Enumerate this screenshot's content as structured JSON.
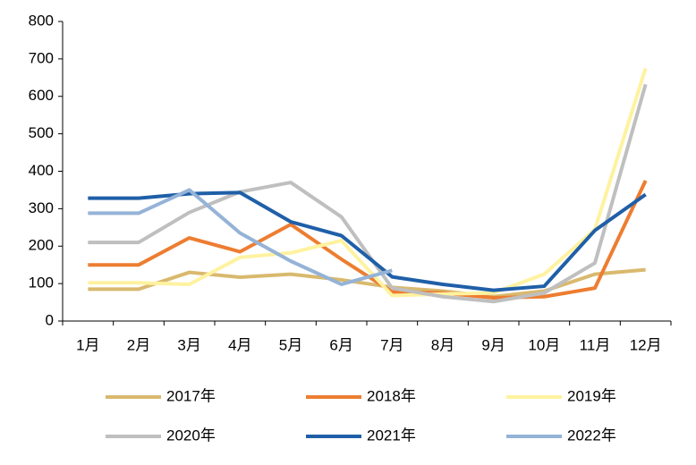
{
  "chart_data": {
    "type": "line",
    "categories": [
      "1月",
      "2月",
      "3月",
      "4月",
      "5月",
      "6月",
      "7月",
      "8月",
      "9月",
      "10月",
      "11月",
      "12月"
    ],
    "series": [
      {
        "name": "2017年",
        "color": "#d9b96e",
        "values": [
          85,
          85,
          130,
          117,
          125,
          110,
          90,
          80,
          65,
          80,
          125,
          137
        ]
      },
      {
        "name": "2018年",
        "color": "#ed7d31",
        "values": [
          150,
          150,
          222,
          185,
          258,
          165,
          78,
          75,
          62,
          65,
          88,
          375
        ]
      },
      {
        "name": "2019年",
        "color": "#fff2a0",
        "values": [
          102,
          102,
          98,
          170,
          182,
          215,
          68,
          72,
          75,
          125,
          245,
          675
        ]
      },
      {
        "name": "2020年",
        "color": "#bfbfbf",
        "values": [
          210,
          210,
          290,
          345,
          370,
          278,
          88,
          65,
          52,
          75,
          155,
          632
        ]
      },
      {
        "name": "2021年",
        "color": "#1f5fa8",
        "values": [
          328,
          328,
          340,
          343,
          265,
          228,
          118,
          98,
          82,
          93,
          242,
          338
        ]
      },
      {
        "name": "2022年",
        "color": "#95b3d7",
        "values": [
          288,
          288,
          350,
          235,
          160,
          98,
          135,
          null,
          null,
          null,
          null,
          null
        ]
      }
    ],
    "ylim": [
      0,
      800
    ],
    "yticks": [
      0,
      100,
      200,
      300,
      400,
      500,
      600,
      700,
      800
    ],
    "grid": false
  }
}
